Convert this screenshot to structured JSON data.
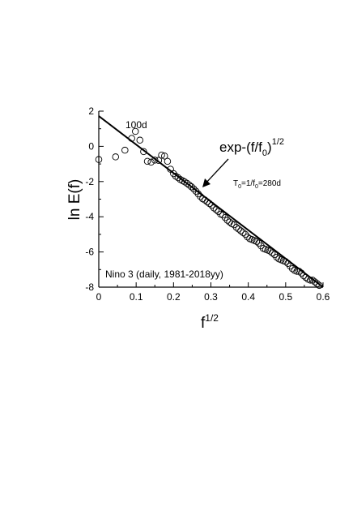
{
  "chart_data": {
    "type": "scatter",
    "xlabel_base": "f",
    "xlabel_sup": "1/2",
    "ylabel": "ln E(f)",
    "xlim": [
      0,
      0.6
    ],
    "ylim": [
      -8,
      2
    ],
    "x_ticks": [
      0,
      0.1,
      0.2,
      0.3,
      0.4,
      0.5,
      0.6
    ],
    "y_ticks": [
      2,
      0,
      -2,
      -4,
      -6,
      -8
    ],
    "x_tick_labels": [
      "0",
      "0.1",
      "0.2",
      "0.3",
      "0.4",
      "0.5",
      "0.6"
    ],
    "y_tick_labels": [
      "2",
      "0",
      "-2",
      "-4",
      "-6",
      "-8"
    ],
    "series": [
      {
        "marker": "open-circle",
        "points": [
          [
            0.0,
            -0.75
          ],
          [
            0.045,
            -0.6
          ],
          [
            0.07,
            -0.22
          ],
          [
            0.088,
            0.45
          ],
          [
            0.098,
            0.85
          ],
          [
            0.11,
            0.35
          ],
          [
            0.12,
            -0.3
          ],
          [
            0.13,
            -0.85
          ],
          [
            0.14,
            -0.9
          ],
          [
            0.15,
            -0.78
          ],
          [
            0.16,
            -0.8
          ],
          [
            0.168,
            -0.5
          ],
          [
            0.176,
            -0.55
          ],
          [
            0.184,
            -0.85
          ],
          [
            0.192,
            -1.3
          ],
          [
            0.2,
            -1.55
          ],
          [
            0.206,
            -1.7
          ],
          [
            0.212,
            -1.78
          ],
          [
            0.218,
            -1.88
          ],
          [
            0.224,
            -1.95
          ],
          [
            0.23,
            -2.02
          ],
          [
            0.236,
            -2.1
          ],
          [
            0.242,
            -2.2
          ],
          [
            0.248,
            -2.3
          ],
          [
            0.254,
            -2.42
          ],
          [
            0.26,
            -2.55
          ],
          [
            0.266,
            -2.7
          ],
          [
            0.272,
            -2.85
          ],
          [
            0.278,
            -2.98
          ],
          [
            0.284,
            -3.05
          ],
          [
            0.29,
            -3.15
          ],
          [
            0.296,
            -3.25
          ],
          [
            0.302,
            -3.35
          ],
          [
            0.308,
            -3.5
          ],
          [
            0.314,
            -3.6
          ],
          [
            0.32,
            -3.7
          ],
          [
            0.326,
            -3.85
          ],
          [
            0.332,
            -3.9
          ],
          [
            0.338,
            -4.05
          ],
          [
            0.344,
            -4.2
          ],
          [
            0.35,
            -4.3
          ],
          [
            0.356,
            -4.4
          ],
          [
            0.362,
            -4.45
          ],
          [
            0.368,
            -4.6
          ],
          [
            0.374,
            -4.7
          ],
          [
            0.38,
            -4.8
          ],
          [
            0.386,
            -4.9
          ],
          [
            0.392,
            -5.0
          ],
          [
            0.398,
            -5.15
          ],
          [
            0.404,
            -5.25
          ],
          [
            0.41,
            -5.3
          ],
          [
            0.416,
            -5.35
          ],
          [
            0.422,
            -5.4
          ],
          [
            0.428,
            -5.5
          ],
          [
            0.434,
            -5.65
          ],
          [
            0.44,
            -5.8
          ],
          [
            0.446,
            -5.85
          ],
          [
            0.452,
            -5.9
          ],
          [
            0.458,
            -5.95
          ],
          [
            0.464,
            -6.05
          ],
          [
            0.47,
            -6.15
          ],
          [
            0.476,
            -6.3
          ],
          [
            0.482,
            -6.4
          ],
          [
            0.488,
            -6.45
          ],
          [
            0.494,
            -6.5
          ],
          [
            0.5,
            -6.55
          ],
          [
            0.506,
            -6.65
          ],
          [
            0.512,
            -6.8
          ],
          [
            0.518,
            -6.95
          ],
          [
            0.524,
            -7.05
          ],
          [
            0.53,
            -7.1
          ],
          [
            0.536,
            -7.1
          ],
          [
            0.542,
            -7.2
          ],
          [
            0.548,
            -7.35
          ],
          [
            0.554,
            -7.45
          ],
          [
            0.56,
            -7.55
          ],
          [
            0.566,
            -7.6
          ],
          [
            0.572,
            -7.6
          ],
          [
            0.578,
            -7.7
          ],
          [
            0.584,
            -7.8
          ],
          [
            0.59,
            -7.9
          ]
        ]
      }
    ],
    "fit_line": {
      "x": [
        0,
        0.6
      ],
      "y": [
        1.72,
        -8.0
      ]
    },
    "annotations": {
      "label_100d": "100d",
      "formula_main": "exp-(f/f",
      "formula_sub": "0",
      "formula_close": ")",
      "formula_sup": "1/2",
      "t0_T": "T",
      "t0_sub1": "0",
      "t0_mid": "=1/f",
      "t0_sub2": "0",
      "t0_end": "=280d",
      "legend_text": "Nino 3  (daily, 1981-2018yy)"
    },
    "grid": false,
    "legend_placement": "bottom-left"
  }
}
